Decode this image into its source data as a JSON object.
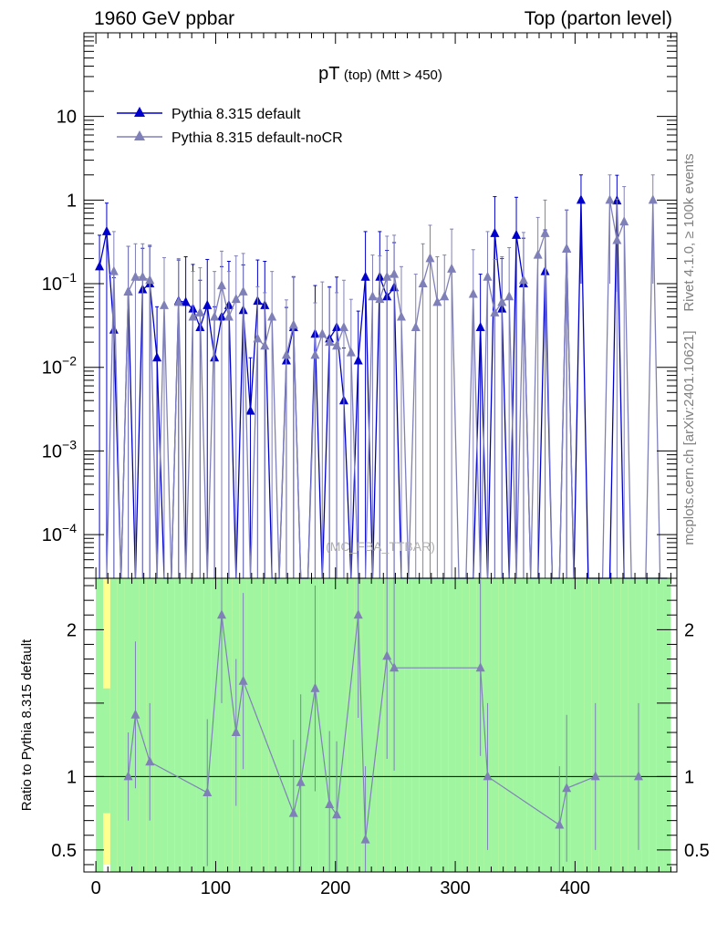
{
  "header": {
    "left": "1960 GeV ppbar",
    "right": "Top (parton level)"
  },
  "side": {
    "rivet": "Rivet 4.1.0, ≥ 100k events",
    "mcplots": "mcplots.cern.ch [arXiv:2401.10621]"
  },
  "watermark": "(MC_FBA_TTBAR)",
  "chart_data": [
    {
      "type": "line",
      "title": "pT (top) (Mtt > 450)",
      "title_parts": {
        "main": "pT",
        "sub": "(top) (Mtt > 450)"
      },
      "xlabel": "",
      "ylabel": "",
      "yscale": "log",
      "xlim": [
        -10,
        485
      ],
      "ylim": [
        3e-05,
        100
      ],
      "x_ticks": [
        0,
        100,
        200,
        300,
        400
      ],
      "y_ticks": [
        {
          "value": 0.0001,
          "base": "10",
          "exp": "−4"
        },
        {
          "value": 0.001,
          "base": "10",
          "exp": "−3"
        },
        {
          "value": 0.01,
          "base": "10",
          "exp": "−2"
        },
        {
          "value": 0.1,
          "base": "10",
          "exp": "−1"
        },
        {
          "value": 1,
          "base": "1",
          "exp": ""
        },
        {
          "value": 10,
          "base": "10",
          "exp": ""
        }
      ],
      "legend": [
        "Pythia 8.315 default",
        "Pythia 8.315 default-noCR"
      ],
      "series": [
        {
          "name": "Pythia 8.315 default",
          "color": "#0000cc",
          "x": [
            3,
            9,
            15,
            21,
            27,
            33,
            39,
            45,
            51,
            57,
            63,
            69,
            75,
            81,
            87,
            93,
            99,
            105,
            111,
            117,
            123,
            129,
            135,
            141,
            147,
            153,
            159,
            165,
            171,
            177,
            183,
            189,
            195,
            201,
            207,
            213,
            219,
            225,
            231,
            237,
            243,
            249,
            255,
            261,
            267,
            273,
            279,
            285,
            291,
            297,
            303,
            309,
            315,
            321,
            327,
            333,
            339,
            345,
            351,
            357,
            363,
            369,
            375,
            381,
            387,
            393,
            399,
            405,
            411,
            417,
            423,
            429,
            435,
            441,
            447,
            453,
            459,
            465,
            471,
            477
          ],
          "y": [
            0.16,
            0.42,
            0.028,
            null,
            0.08,
            null,
            0.085,
            0.1,
            0.013,
            null,
            null,
            0.062,
            0.06,
            0.05,
            0.03,
            0.055,
            0.013,
            0.04,
            0.055,
            null,
            0.048,
            0.003,
            0.062,
            0.055,
            null,
            null,
            0.012,
            0.03,
            null,
            null,
            0.025,
            null,
            0.022,
            0.03,
            0.004,
            null,
            0.012,
            0.12,
            null,
            0.12,
            0.07,
            0.09,
            null,
            null,
            null,
            null,
            null,
            null,
            null,
            null,
            null,
            null,
            null,
            0.03,
            null,
            0.4,
            0.05,
            null,
            0.38,
            0.1,
            null,
            null,
            0.14,
            null,
            null,
            0.26,
            null,
            1.0,
            null,
            null,
            null,
            null,
            0.98,
            null,
            null,
            null,
            null,
            null,
            null,
            null
          ],
          "err": [
            0.22,
            0.5,
            0.09,
            null,
            0.2,
            null,
            0.18,
            0.18,
            0.04,
            null,
            null,
            0.13,
            0.15,
            0.12,
            0.08,
            0.14,
            0.04,
            0.12,
            0.13,
            null,
            0.12,
            0.01,
            0.13,
            0.13,
            null,
            null,
            0.04,
            0.09,
            null,
            null,
            0.07,
            null,
            0.07,
            0.09,
            0.013,
            null,
            0.035,
            0.3,
            null,
            0.3,
            0.18,
            0.22,
            null,
            null,
            null,
            null,
            null,
            null,
            null,
            null,
            null,
            null,
            null,
            0.1,
            null,
            0.7,
            0.15,
            null,
            0.7,
            0.25,
            null,
            null,
            0.3,
            null,
            null,
            0.5,
            null,
            1.0,
            null,
            null,
            null,
            null,
            1.0,
            null,
            null,
            null,
            null,
            null,
            null,
            null
          ]
        },
        {
          "name": "Pythia 8.315 default-noCR",
          "color": "#8080b8",
          "x": [
            3,
            9,
            15,
            21,
            27,
            33,
            39,
            45,
            51,
            57,
            63,
            69,
            75,
            81,
            87,
            93,
            99,
            105,
            111,
            117,
            123,
            129,
            135,
            141,
            147,
            153,
            159,
            165,
            171,
            177,
            183,
            189,
            195,
            201,
            207,
            213,
            219,
            225,
            231,
            237,
            243,
            249,
            255,
            261,
            267,
            273,
            279,
            285,
            291,
            297,
            303,
            309,
            315,
            321,
            327,
            333,
            339,
            345,
            351,
            357,
            363,
            369,
            375,
            381,
            387,
            393,
            399,
            405,
            411,
            417,
            423,
            429,
            435,
            441,
            447,
            453,
            459,
            465,
            471,
            477
          ],
          "y": [
            null,
            null,
            0.14,
            null,
            0.08,
            0.12,
            0.12,
            0.11,
            null,
            0.055,
            null,
            0.06,
            null,
            0.04,
            0.045,
            null,
            0.04,
            0.095,
            0.04,
            0.065,
            0.08,
            null,
            0.022,
            0.018,
            0.04,
            null,
            0.014,
            0.032,
            null,
            null,
            0.014,
            0.025,
            0.02,
            0.018,
            0.03,
            0.015,
            null,
            null,
            0.07,
            0.065,
            0.12,
            0.13,
            0.04,
            null,
            0.03,
            0.1,
            0.2,
            0.06,
            0.07,
            0.15,
            null,
            null,
            0.075,
            null,
            0.12,
            0.045,
            0.06,
            0.07,
            null,
            0.11,
            null,
            0.22,
            0.4,
            null,
            null,
            0.26,
            null,
            null,
            null,
            null,
            null,
            1.0,
            0.33,
            0.55,
            null,
            null,
            null,
            1.0,
            null,
            null
          ],
          "err": [
            null,
            null,
            0.28,
            null,
            0.2,
            0.18,
            0.18,
            0.18,
            null,
            0.15,
            null,
            0.14,
            null,
            0.1,
            0.11,
            null,
            0.1,
            0.15,
            0.1,
            0.15,
            0.15,
            null,
            0.07,
            0.06,
            0.1,
            null,
            0.05,
            0.09,
            null,
            null,
            0.045,
            0.08,
            0.07,
            0.06,
            0.08,
            0.05,
            null,
            null,
            0.15,
            0.15,
            0.25,
            0.25,
            0.12,
            null,
            0.1,
            0.2,
            0.3,
            0.15,
            0.15,
            0.3,
            null,
            null,
            0.18,
            null,
            0.3,
            0.15,
            0.15,
            0.2,
            null,
            0.3,
            null,
            0.4,
            0.6,
            null,
            null,
            0.5,
            null,
            null,
            null,
            null,
            null,
            1.0,
            0.7,
            0.9,
            null,
            null,
            null,
            1.0,
            null,
            null
          ]
        }
      ]
    },
    {
      "type": "line",
      "title": "",
      "xlabel": "",
      "ylabel": "Ratio to Pythia 8.315 default",
      "xlim": [
        -10,
        485
      ],
      "ylim": [
        0.35,
        2.35
      ],
      "x_ticks": [
        0,
        100,
        200,
        300,
        400
      ],
      "y_ticks": [
        0.5,
        1,
        2
      ],
      "y_tick_labels": [
        "0.5",
        "1",
        "2"
      ],
      "reference_line": 1,
      "band_colors": {
        "inner": "#a0f5a0",
        "outer": "#ffff90"
      },
      "bands": {
        "x": [
          3,
          9,
          15,
          21,
          27,
          33,
          39,
          45,
          51,
          57,
          63,
          69,
          75,
          81,
          87,
          93,
          99,
          105,
          111,
          117,
          123,
          129,
          135,
          141,
          147,
          153,
          159,
          165,
          171,
          177,
          183,
          189,
          195,
          201,
          207,
          213,
          219,
          225,
          231,
          237,
          243,
          249,
          255,
          261,
          267,
          273,
          279,
          285,
          291,
          297,
          303,
          309,
          315,
          321,
          327,
          333,
          339,
          345,
          351,
          357,
          363,
          369,
          375,
          381,
          387,
          393,
          399,
          405,
          411,
          417,
          423,
          429,
          435,
          441,
          447,
          453,
          459,
          465,
          471,
          477
        ],
        "inner_low": [
          0.35,
          0.75,
          0.35,
          0.35,
          0.35,
          0.35,
          0.35,
          0.35,
          0.35,
          0.35,
          0.35,
          0.35,
          0.35,
          0.35,
          0.35,
          0.35,
          0.35,
          0.35,
          0.35,
          0.35,
          0.35,
          0.35,
          0.35,
          0.35,
          0.35,
          0.35,
          0.35,
          0.35,
          0.35,
          0.35,
          0.35,
          0.35,
          0.35,
          0.35,
          0.35,
          0.35,
          0.35,
          0.35,
          0.35,
          0.35,
          0.35,
          0.35,
          0.35,
          0.35,
          0.35,
          0.35,
          0.35,
          0.35,
          0.35,
          0.35,
          0.35,
          0.35,
          0.35,
          0.35,
          0.35,
          0.35,
          0.35,
          0.35,
          0.35,
          0.35,
          0.35,
          0.35,
          0.35,
          0.35,
          0.35,
          0.35,
          0.35,
          0.35,
          0.35,
          0.35,
          0.35,
          0.35,
          0.35,
          0.35,
          0.35,
          0.35,
          0.35,
          0.35,
          0.35,
          0.35
        ],
        "inner_high": [
          2.35,
          1.6,
          2.35,
          2.35,
          2.35,
          2.35,
          2.35,
          2.35,
          2.35,
          2.35,
          2.35,
          2.35,
          2.35,
          2.35,
          2.35,
          2.35,
          2.35,
          2.35,
          2.35,
          2.35,
          2.35,
          2.35,
          2.35,
          2.35,
          2.35,
          2.35,
          2.35,
          2.35,
          2.35,
          2.35,
          2.35,
          2.35,
          2.35,
          2.35,
          2.35,
          2.35,
          2.35,
          2.35,
          2.35,
          2.35,
          2.35,
          2.35,
          2.35,
          2.35,
          2.35,
          2.35,
          2.35,
          2.35,
          2.35,
          2.35,
          2.35,
          2.35,
          2.35,
          2.35,
          2.35,
          2.35,
          2.35,
          2.35,
          2.35,
          2.35,
          2.35,
          2.35,
          2.35,
          2.35,
          2.35,
          2.35,
          2.35,
          2.35,
          2.35,
          2.35,
          2.35,
          2.35,
          2.35,
          2.35,
          2.35,
          2.35,
          2.35,
          2.35,
          2.35,
          2.35
        ],
        "outer_low": [
          0.35,
          0.4,
          0.35,
          0.35,
          0.35,
          0.35,
          0.35,
          0.35,
          0.35,
          0.35,
          0.35,
          0.35,
          0.35,
          0.35,
          0.35,
          0.35,
          0.35,
          0.35,
          0.35,
          0.35,
          0.35,
          0.35,
          0.35,
          0.35,
          0.35,
          0.35,
          0.35,
          0.35,
          0.35,
          0.35,
          0.35,
          0.35,
          0.35,
          0.35,
          0.35,
          0.35,
          0.35,
          0.35,
          0.35,
          0.35,
          0.35,
          0.35,
          0.35,
          0.35,
          0.35,
          0.35,
          0.35,
          0.35,
          0.35,
          0.35,
          0.35,
          0.35,
          0.35,
          0.35,
          0.35,
          0.35,
          0.35,
          0.35,
          0.35,
          0.35,
          0.35,
          0.35,
          0.35,
          0.35,
          0.35,
          0.35,
          0.35,
          0.35,
          0.35,
          0.35,
          0.35,
          0.35,
          0.35,
          0.35,
          0.35,
          0.35,
          0.35,
          0.35,
          0.35,
          0.35
        ],
        "outer_high": [
          2.35,
          2.35,
          2.35,
          2.35,
          2.35,
          2.35,
          2.35,
          2.35,
          2.35,
          2.35,
          2.35,
          2.35,
          2.35,
          2.35,
          2.35,
          2.35,
          2.35,
          2.35,
          2.35,
          2.35,
          2.35,
          2.35,
          2.35,
          2.35,
          2.35,
          2.35,
          2.35,
          2.35,
          2.35,
          2.35,
          2.35,
          2.35,
          2.35,
          2.35,
          2.35,
          2.35,
          2.35,
          2.35,
          2.35,
          2.35,
          2.35,
          2.35,
          2.35,
          2.35,
          2.35,
          2.35,
          2.35,
          2.35,
          2.35,
          2.35,
          2.35,
          2.35,
          2.35,
          2.35,
          2.35,
          2.35,
          2.35,
          2.35,
          2.35,
          2.35,
          2.35,
          2.35,
          2.35,
          2.35,
          2.35,
          2.35,
          2.35,
          2.35,
          2.35,
          2.35,
          2.35,
          2.35,
          2.35,
          2.35,
          2.35,
          2.35,
          2.35,
          2.35,
          2.35,
          2.35
        ]
      },
      "series": [
        {
          "name": "Pythia 8.315 default-noCR / Pythia 8.315 default",
          "color": "#8080b8",
          "x": [
            27,
            33,
            45,
            93,
            105,
            117,
            123,
            165,
            171,
            183,
            195,
            201,
            219,
            225,
            243,
            249,
            321,
            327,
            387,
            393,
            417,
            453
          ],
          "y": [
            1.0,
            1.42,
            1.1,
            0.89,
            2.1,
            1.3,
            1.65,
            0.75,
            0.96,
            1.6,
            0.81,
            0.74,
            2.1,
            0.57,
            1.82,
            1.74,
            1.74,
            1.0,
            0.67,
            0.92,
            1.0,
            1.0
          ],
          "err": [
            0.3,
            0.5,
            0.4,
            0.5,
            0.6,
            0.5,
            0.6,
            0.5,
            0.6,
            0.7,
            0.5,
            0.5,
            0.7,
            0.5,
            0.7,
            0.7,
            0.6,
            0.5,
            0.4,
            0.5,
            0.5,
            0.5
          ]
        }
      ]
    }
  ]
}
